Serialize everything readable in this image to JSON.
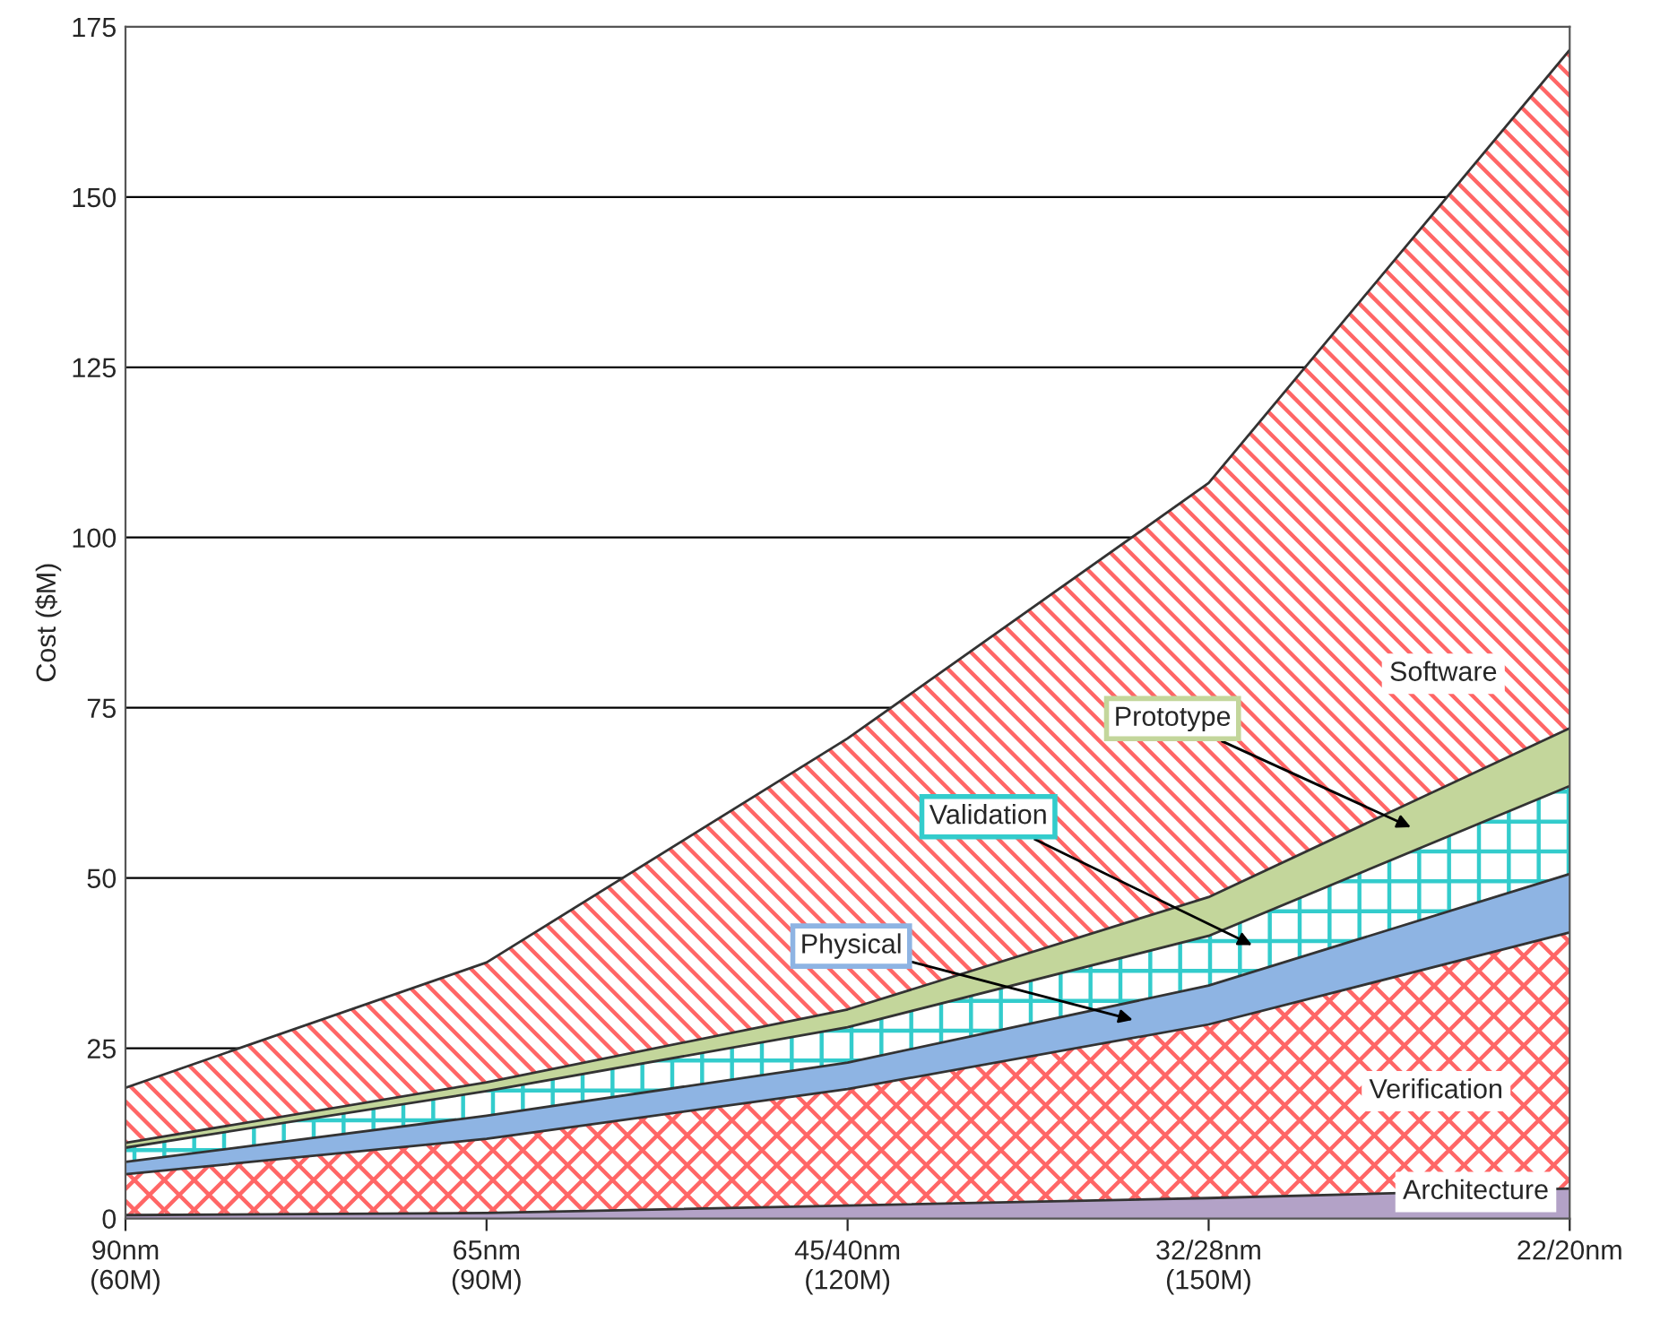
{
  "chart_data": {
    "type": "area",
    "ylabel": "Cost ($M)",
    "stacked": true,
    "categories": [
      "90nm\n(60M)",
      "65nm\n(90M)",
      "45/40nm\n(120M)",
      "32/28nm\n(150M)",
      "22/20nm"
    ],
    "series": [
      {
        "name": "Architecture",
        "color": "#b3a2c7",
        "values": [
          0.5,
          0.8,
          1.9,
          3.0,
          4.4
        ]
      },
      {
        "name": "Verification",
        "color": "#ff6666",
        "values": [
          6.0,
          10.9,
          17.1,
          25.5,
          37.6
        ]
      },
      {
        "name": "Physical",
        "color": "#8eb4e3",
        "values": [
          1.8,
          3.4,
          3.9,
          5.7,
          8.6
        ]
      },
      {
        "name": "Validation",
        "color": "#33cccc",
        "values": [
          2.1,
          3.6,
          5.2,
          7.3,
          12.9
        ]
      },
      {
        "name": "Prototype",
        "color": "#c3d69b",
        "values": [
          0.7,
          1.3,
          2.6,
          5.7,
          8.5
        ]
      },
      {
        "name": "Software",
        "color": "#ff6666",
        "values": [
          8.1,
          17.6,
          39.8,
          60.8,
          99.6
        ]
      }
    ],
    "ylim": [
      0,
      175
    ],
    "yticks": [
      0,
      25,
      50,
      75,
      100,
      125,
      150,
      175
    ],
    "grid": "y",
    "legend": false
  }
}
